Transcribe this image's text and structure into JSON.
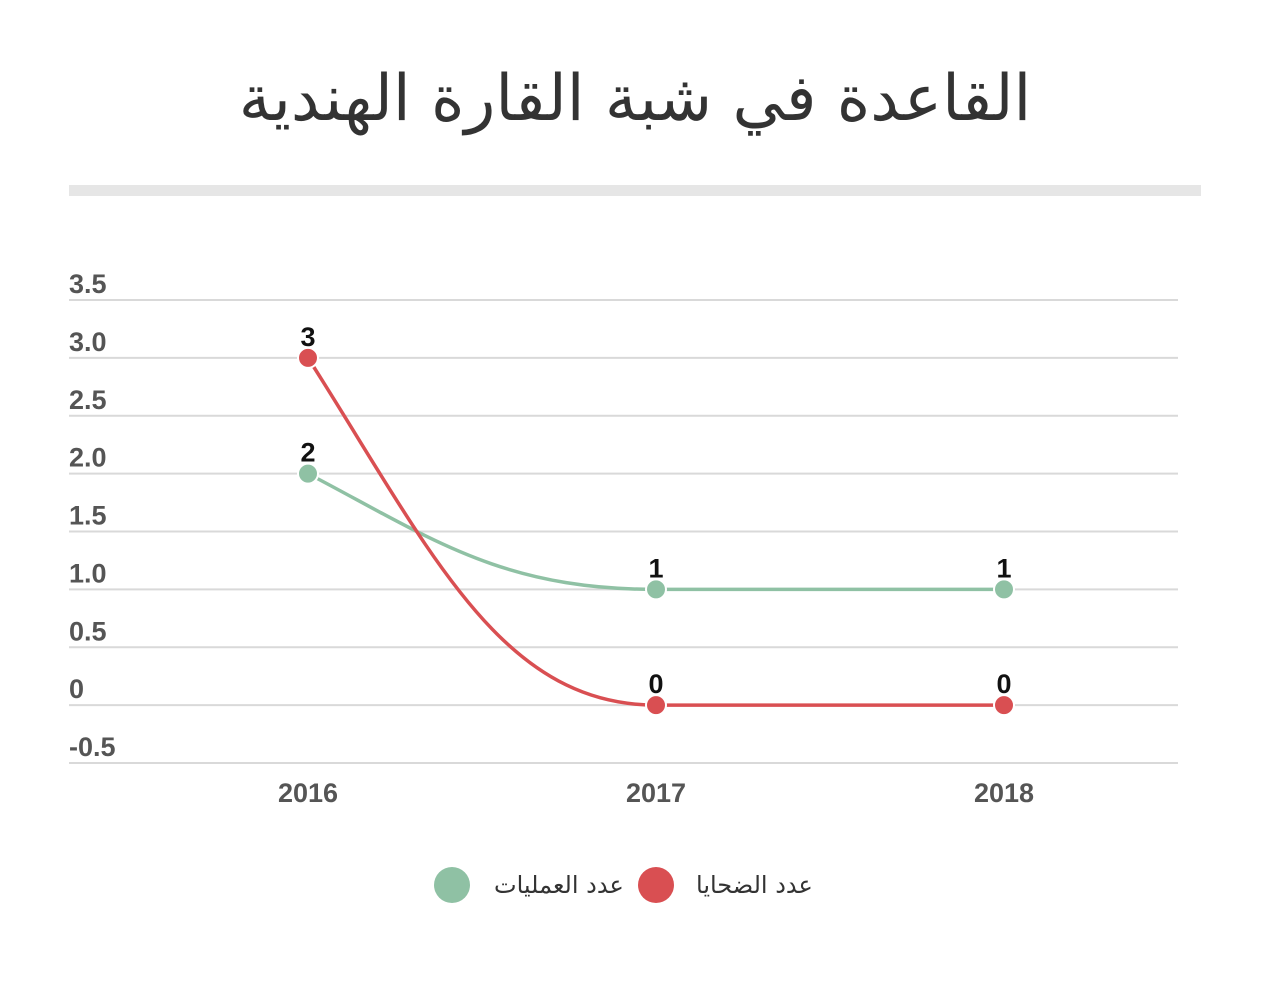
{
  "chart_data": {
    "type": "line",
    "title": "القاعدة في شبة القارة الهندية",
    "categories": [
      "2016",
      "2017",
      "2018"
    ],
    "ylim": [
      -0.5,
      3.5
    ],
    "yticks": [
      "3.5",
      "3.0",
      "2.5",
      "2.0",
      "1.5",
      "1.0",
      "0.5",
      "0",
      "-0.5"
    ],
    "ytick_values": [
      3.5,
      3.0,
      2.5,
      2.0,
      1.5,
      1.0,
      0.5,
      0,
      -0.5
    ],
    "grid": true,
    "legend": "bottom",
    "series": [
      {
        "name": "عدد العمليات",
        "values": [
          2,
          1,
          1
        ],
        "color": "#8fc1a4"
      },
      {
        "name": "عدد الضحايا",
        "values": [
          3,
          0,
          0
        ],
        "color": "#d94f52"
      }
    ]
  }
}
